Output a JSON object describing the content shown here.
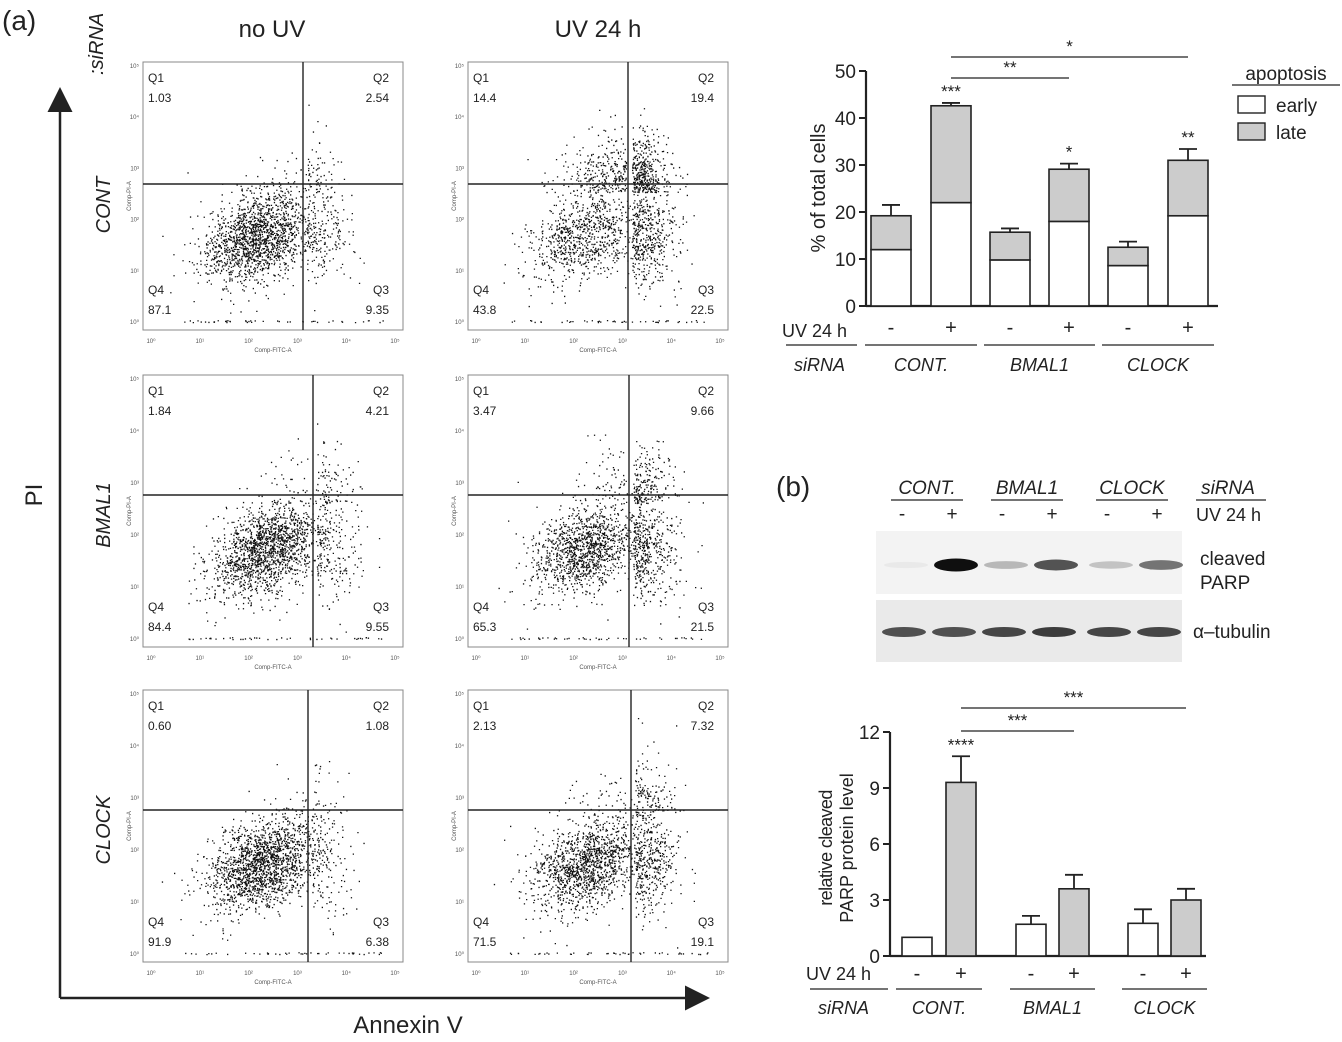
{
  "figure": {
    "panel_a_label": "(a)",
    "panel_b_label": "(b)",
    "col_labels": [
      "no UV",
      "UV 24 h"
    ],
    "row_header": ":siRNA",
    "row_labels": [
      "CONT",
      "BMAL1",
      "CLOCK"
    ],
    "y_arrow_label": "PI",
    "x_arrow_label": "Annexin V",
    "flow_axis_x": "Comp-FITC-A",
    "flow_axis_y": "Comp-PI-A"
  },
  "flow_plots": [
    {
      "row": "CONT",
      "condition": "no UV",
      "q1": "1.03",
      "q2": "2.54",
      "q3": "9.35",
      "q4": "87.1"
    },
    {
      "row": "CONT",
      "condition": "UV 24 h",
      "q1": "14.4",
      "q2": "19.4",
      "q3": "22.5",
      "q4": "43.8"
    },
    {
      "row": "BMAL1",
      "condition": "no UV",
      "q1": "1.84",
      "q2": "4.21",
      "q3": "9.55",
      "q4": "84.4"
    },
    {
      "row": "BMAL1",
      "condition": "UV 24 h",
      "q1": "3.47",
      "q2": "9.66",
      "q3": "21.5",
      "q4": "65.3"
    },
    {
      "row": "CLOCK",
      "condition": "no UV",
      "q1": "0.60",
      "q2": "1.08",
      "q3": "6.38",
      "q4": "91.9"
    },
    {
      "row": "CLOCK",
      "condition": "UV 24 h",
      "q1": "2.13",
      "q2": "7.32",
      "q3": "19.1",
      "q4": "71.5"
    }
  ],
  "blot": {
    "groups": [
      "CONT.",
      "BMAL1",
      "CLOCK"
    ],
    "sirna_label": "siRNA",
    "uv_label": "UV 24 h",
    "lane_signs": [
      "-",
      "+",
      "-",
      "+",
      "-",
      "+"
    ],
    "band1_label": [
      "cleaved",
      "PARP"
    ],
    "band2_label": "α–tubulin",
    "parp_intensity": [
      0.03,
      1.0,
      0.25,
      0.7,
      0.2,
      0.55
    ],
    "tubulin_intensity": [
      0.8,
      0.8,
      0.85,
      0.9,
      0.85,
      0.85
    ]
  },
  "chart_data": [
    {
      "type": "bar",
      "stacked": true,
      "ylabel": "% of total cells",
      "ylim": [
        0,
        50
      ],
      "yticks": [
        0,
        10,
        20,
        30,
        40,
        50
      ],
      "legend_title": "apoptosis",
      "legend_position": "top-right",
      "uv_row_label": "UV 24 h",
      "sirna_row_label": "siRNA",
      "groups": [
        "CONT.",
        "BMAL1",
        "CLOCK"
      ],
      "categories": [
        "-",
        "+",
        "-",
        "+",
        "-",
        "+"
      ],
      "series": [
        {
          "name": "early",
          "color": "#ffffff",
          "values": [
            12,
            22,
            9.8,
            18,
            8.6,
            19.2
          ],
          "errors": [
            1.8,
            2.3,
            1.0,
            1.8,
            1.2,
            1.3
          ]
        },
        {
          "name": "late",
          "color": "#cccccc",
          "values": [
            7.2,
            20.6,
            5.9,
            11.1,
            3.9,
            11.8
          ],
          "errors": [
            2.3,
            0.6,
            0.8,
            1.2,
            1.2,
            2.4
          ]
        }
      ],
      "significance": [
        {
          "bar": 1,
          "label": "***"
        },
        {
          "bar": 3,
          "label": "*"
        },
        {
          "bar": 5,
          "label": "**"
        }
      ],
      "brackets": [
        {
          "from": 1,
          "to": 3,
          "label": "**"
        },
        {
          "from": 1,
          "to": 5,
          "label": "*"
        }
      ]
    },
    {
      "type": "bar",
      "ylabel": [
        "relative cleaved",
        "PARP protein level"
      ],
      "ylim": [
        0,
        12
      ],
      "yticks": [
        0,
        3,
        6,
        9,
        12
      ],
      "uv_row_label": "UV 24 h",
      "sirna_row_label": "siRNA",
      "groups": [
        "CONT.",
        "BMAL1",
        "CLOCK"
      ],
      "categories": [
        "-",
        "+",
        "-",
        "+",
        "-",
        "+"
      ],
      "values": [
        1.0,
        9.3,
        1.7,
        3.6,
        1.75,
        3.0
      ],
      "errors": [
        0,
        1.4,
        0.45,
        0.75,
        0.75,
        0.6
      ],
      "colors": [
        "#ffffff",
        "#cccccc",
        "#ffffff",
        "#cccccc",
        "#ffffff",
        "#cccccc"
      ],
      "significance": [
        {
          "bar": 1,
          "label": "****"
        }
      ],
      "brackets": [
        {
          "from": 1,
          "to": 3,
          "label": "***"
        },
        {
          "from": 1,
          "to": 5,
          "label": "***"
        }
      ]
    }
  ]
}
